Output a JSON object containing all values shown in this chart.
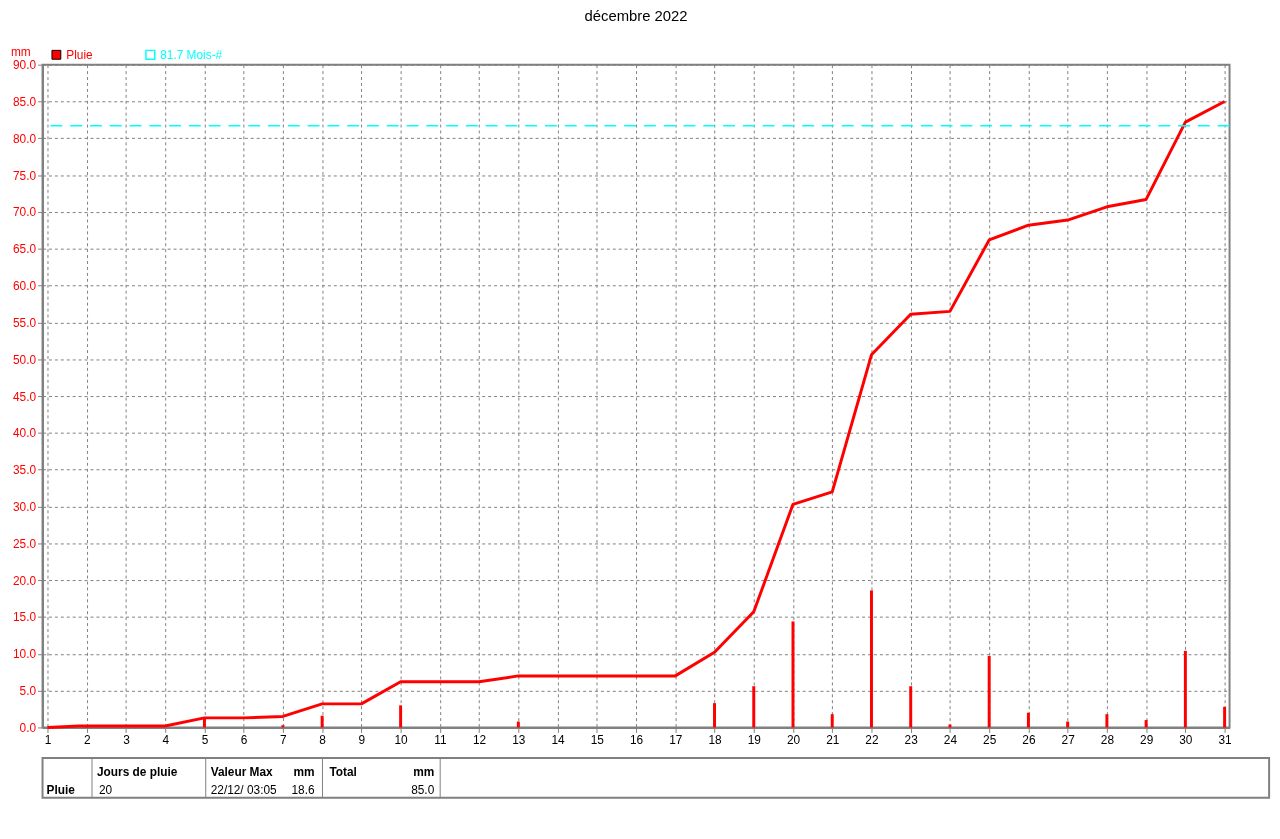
{
  "chart_data": {
    "type": "line",
    "title": "décembre 2022",
    "ylabel": "mm",
    "series": [
      {
        "name": "Pluie",
        "color": "#ff0000",
        "x": [
          1,
          1.8,
          4,
          5,
          6,
          7,
          8,
          9,
          10,
          12,
          13,
          17,
          18,
          19,
          20,
          21,
          22,
          23,
          24,
          25,
          26,
          27,
          28,
          29,
          30,
          31
        ],
        "values": [
          0,
          0.2,
          0.2,
          1.3,
          1.3,
          1.5,
          3.2,
          3.2,
          6.2,
          6.2,
          7.0,
          7.0,
          10.2,
          15.7,
          30.3,
          32.0,
          50.6,
          56.1,
          56.5,
          66.2,
          68.2,
          68.9,
          70.7,
          71.7,
          82.2,
          85.0
        ]
      },
      {
        "type": "bar",
        "color": "#ff0000",
        "x": [
          2,
          5,
          7,
          8,
          10,
          13,
          18,
          19,
          20,
          21,
          22,
          23,
          24,
          25,
          26,
          27,
          28,
          29,
          30,
          31
        ],
        "values": [
          0.2,
          1.2,
          0.3,
          1.6,
          3.0,
          0.8,
          3.3,
          5.6,
          14.4,
          1.8,
          18.6,
          5.6,
          0.4,
          9.7,
          2.0,
          0.8,
          1.8,
          1.0,
          10.4,
          2.8
        ]
      }
    ],
    "xlim": [
      1,
      31
    ],
    "xticks": [
      1,
      2,
      3,
      4,
      5,
      6,
      7,
      8,
      9,
      10,
      11,
      12,
      13,
      14,
      15,
      16,
      17,
      18,
      19,
      20,
      21,
      22,
      23,
      24,
      25,
      26,
      27,
      28,
      29,
      30,
      31
    ],
    "ylim": [
      0,
      90
    ],
    "yticks": [
      {
        "value": 0,
        "label": "0.0"
      },
      {
        "value": 5,
        "label": "5.0"
      },
      {
        "value": 10,
        "label": "10.0"
      },
      {
        "value": 15,
        "label": "15.0"
      },
      {
        "value": 20,
        "label": "20.0"
      },
      {
        "value": 25,
        "label": "25.0"
      },
      {
        "value": 30,
        "label": "30.0"
      },
      {
        "value": 35,
        "label": "35.0"
      },
      {
        "value": 40,
        "label": "40.0"
      },
      {
        "value": 45,
        "label": "45.0"
      },
      {
        "value": 50,
        "label": "50.0"
      },
      {
        "value": 55,
        "label": "55.0"
      },
      {
        "value": 60,
        "label": "60.0"
      },
      {
        "value": 65,
        "label": "65.0"
      },
      {
        "value": 70,
        "label": "70.0"
      },
      {
        "value": 75,
        "label": "75.0"
      },
      {
        "value": 80,
        "label": "80.0"
      },
      {
        "value": 85,
        "label": "85.0"
      },
      {
        "value": 90,
        "label": "90.0"
      }
    ],
    "ref_lines": [
      {
        "axis": "y",
        "value": 81.7,
        "label": "81.7 Mois-#",
        "color": "#00ffff",
        "line_style": "dashed"
      }
    ],
    "grid": true,
    "legend": "top left",
    "marker": "none",
    "line_style": "solid",
    "annotations": [
      "Pluie",
      "Jours de pluie",
      "20",
      "Valeur Max",
      "mm",
      "22/12/ 03:05",
      "18.6",
      "Total",
      "mm",
      "85.0"
    ]
  }
}
